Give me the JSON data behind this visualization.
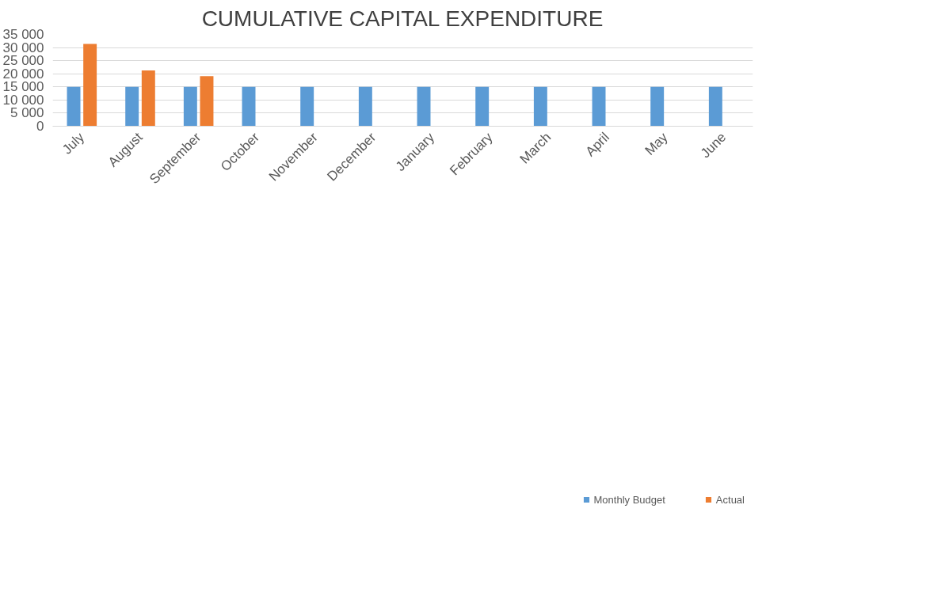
{
  "chart_data": {
    "type": "bar",
    "title": "CUMULATIVE CAPITAL EXPENDITURE",
    "categories": [
      "July",
      "August",
      "September",
      "October",
      "November",
      "December",
      "January",
      "February",
      "March",
      "April",
      "May",
      "June"
    ],
    "series": [
      {
        "name": "Monthly Budget",
        "color": "#5b9bd5",
        "values": [
          15000,
          15000,
          15000,
          15000,
          15000,
          15000,
          15000,
          15000,
          15000,
          15000,
          15000,
          15000
        ]
      },
      {
        "name": "Actual",
        "color": "#ed7d31",
        "values": [
          31400,
          21300,
          19100,
          null,
          null,
          null,
          null,
          null,
          null,
          null,
          null,
          null
        ]
      }
    ],
    "ylim": [
      0,
      35000
    ],
    "yticks": [
      {
        "value": 0,
        "label": "0"
      },
      {
        "value": 5000,
        "label": "5 000"
      },
      {
        "value": 10000,
        "label": "10 000"
      },
      {
        "value": 15000,
        "label": "15 000"
      },
      {
        "value": 20000,
        "label": "20 000"
      },
      {
        "value": 25000,
        "label": "25 000"
      },
      {
        "value": 30000,
        "label": "30 000"
      },
      {
        "value": 35000,
        "label": "35 000"
      }
    ],
    "grid": "y",
    "legend": "bottom right"
  }
}
